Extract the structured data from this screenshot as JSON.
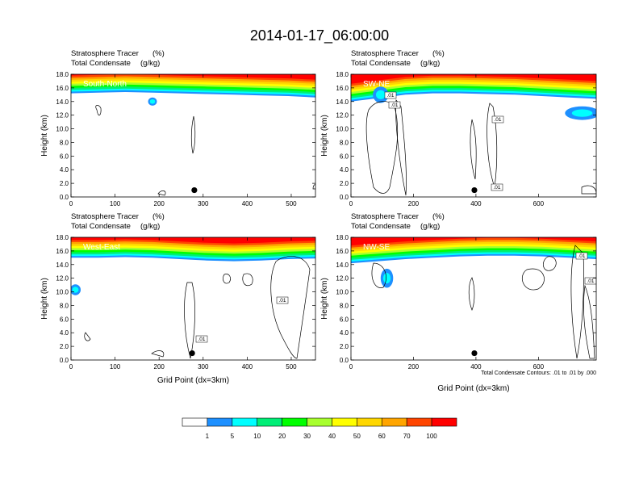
{
  "figure": {
    "title": "2014-01-17_06:00:00",
    "contour_note": "Total Condensate Contours: .01 to .01 by .000"
  },
  "colors": {
    "tracer_levels": [
      "#ffffff",
      "#1e90ff",
      "#00ffff",
      "#00ee76",
      "#00ff00",
      "#a8ff2e",
      "#ffff00",
      "#ffd700",
      "#ffa500",
      "#ff4500",
      "#ff0000"
    ],
    "condensate_contour": "#000000",
    "marker": "#000000"
  },
  "colorbar": {
    "labels": [
      "1",
      "5",
      "10",
      "20",
      "30",
      "40",
      "50",
      "60",
      "70",
      "100"
    ],
    "fill_colors": [
      "#ffffff",
      "#1e90ff",
      "#00ffff",
      "#00ee76",
      "#00ff00",
      "#a8ff2e",
      "#ffff00",
      "#ffd700",
      "#ffa500",
      "#ff4500",
      "#ff0000"
    ]
  },
  "chart_data": [
    {
      "type": "heatmap",
      "panel_label": "South-North",
      "subtitle_1": "Stratosphere Tracer",
      "subtitle_1_units": "(%)",
      "subtitle_2": "Total Condensate",
      "subtitle_2_units": "(g/kg)",
      "ylabel": "Height (km)",
      "xlabel": "",
      "xlim": [
        0,
        555
      ],
      "ylim": [
        0,
        18
      ],
      "x_ticks": [
        "0",
        "100",
        "200",
        "300",
        "400",
        "500"
      ],
      "y_ticks": [
        "0.0",
        "2.0",
        "4.0",
        "6.0",
        "8.0",
        "10.0",
        "12.0",
        "14.0",
        "16.0",
        "18.0"
      ],
      "tracer_layer_base_km": [
        15.2,
        15.3,
        15.4,
        15.3,
        15.2,
        15.1,
        15.0,
        14.9,
        14.8,
        14.6
      ],
      "blue_patches": [
        {
          "x": 185,
          "y": 14.0,
          "rx": 10,
          "ry": 0.6
        }
      ],
      "marker": {
        "x": 280,
        "y": 1.0
      },
      "contour_labels": []
    },
    {
      "type": "heatmap",
      "panel_label": "SW-NE",
      "subtitle_1": "Stratosphere Tracer",
      "subtitle_1_units": "(%)",
      "subtitle_2": "Total Condensate",
      "subtitle_2_units": "(g/kg)",
      "ylabel": "Height (km)",
      "xlabel": "",
      "xlim": [
        0,
        785
      ],
      "ylim": [
        0,
        18
      ],
      "x_ticks": [
        "0",
        "200",
        "400",
        "600"
      ],
      "y_ticks": [
        "0.0",
        "2.0",
        "4.0",
        "6.0",
        "8.0",
        "10.0",
        "12.0",
        "14.0",
        "16.0",
        "18.0"
      ],
      "tracer_layer_base_km": [
        14.0,
        14.5,
        15.0,
        15.2,
        15.2,
        15.1,
        15.0,
        14.8,
        14.6,
        14.4
      ],
      "blue_patches": [
        {
          "x": 740,
          "y": 12.3,
          "rx": 55,
          "ry": 1.0
        },
        {
          "x": 95,
          "y": 15.0,
          "rx": 25,
          "ry": 1.2
        }
      ],
      "marker": {
        "x": 395,
        "y": 1.0
      },
      "contour_labels": [
        ".01",
        ".01",
        ".01",
        ".01"
      ]
    },
    {
      "type": "heatmap",
      "panel_label": "West-East",
      "subtitle_1": "Stratosphere Tracer",
      "subtitle_1_units": "(%)",
      "subtitle_2": "Total Condensate",
      "subtitle_2_units": "(g/kg)",
      "ylabel": "Height (km)",
      "xlabel": "Grid Point (dx=3km)",
      "xlim": [
        0,
        555
      ],
      "ylim": [
        0,
        18
      ],
      "x_ticks": [
        "0",
        "100",
        "200",
        "300",
        "400",
        "500"
      ],
      "y_ticks": [
        "0.0",
        "2.0",
        "4.0",
        "6.0",
        "8.0",
        "10.0",
        "12.0",
        "14.0",
        "16.0",
        "18.0"
      ],
      "tracer_layer_base_km": [
        15.0,
        15.0,
        15.1,
        15.0,
        14.8,
        14.6,
        14.5,
        14.6,
        14.8,
        14.9
      ],
      "blue_patches": [
        {
          "x": 10,
          "y": 10.3,
          "rx": 12,
          "ry": 0.8
        }
      ],
      "marker": {
        "x": 275,
        "y": 1.0
      },
      "contour_labels": [
        ".01",
        ".01"
      ]
    },
    {
      "type": "heatmap",
      "panel_label": "NW-SE",
      "subtitle_1": "Stratosphere Tracer",
      "subtitle_1_units": "(%)",
      "subtitle_2": "Total Condensate",
      "subtitle_2_units": "(g/kg)",
      "ylabel": "Height (km)",
      "xlabel": "Grid Point (dx=3km)",
      "xlim": [
        0,
        785
      ],
      "ylim": [
        0,
        18
      ],
      "x_ticks": [
        "0",
        "200",
        "400",
        "600"
      ],
      "y_ticks": [
        "0.0",
        "2.0",
        "4.0",
        "6.0",
        "8.0",
        "10.0",
        "12.0",
        "14.0",
        "16.0",
        "18.0"
      ],
      "tracer_layer_base_km": [
        14.2,
        14.5,
        14.8,
        15.0,
        15.2,
        15.3,
        15.3,
        15.2,
        15.0,
        14.8
      ],
      "blue_patches": [
        {
          "x": 115,
          "y": 12.0,
          "rx": 20,
          "ry": 1.4
        }
      ],
      "marker": {
        "x": 395,
        "y": 1.0
      },
      "contour_labels": [
        ".01",
        ".01"
      ]
    }
  ]
}
